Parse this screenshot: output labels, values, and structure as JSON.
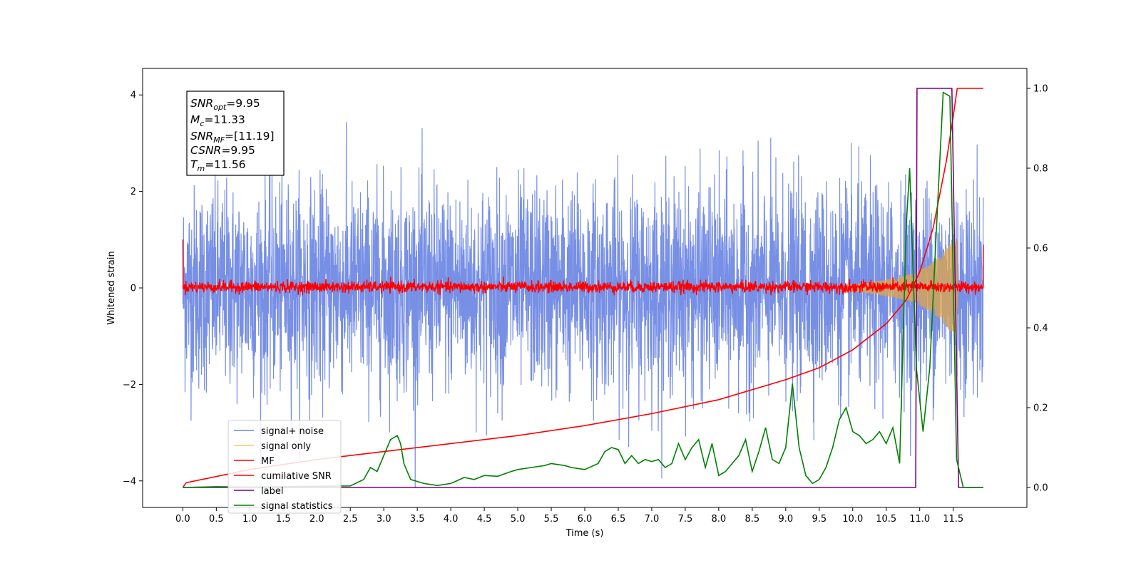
{
  "chart_data": {
    "type": "line",
    "xlabel": "Time (s)",
    "ylabel": "Whitened strain",
    "xlim": [
      -0.6,
      12.6
    ],
    "ylim": [
      -4.55,
      4.55
    ],
    "y2lim": [
      -0.05,
      1.05
    ],
    "grid": false,
    "xticks": [
      "0.0",
      "0.5",
      "1.0",
      "1.5",
      "2.0",
      "2.5",
      "3.0",
      "3.5",
      "4.0",
      "4.5",
      "5.0",
      "5.5",
      "6.0",
      "6.5",
      "7.0",
      "7.5",
      "8.0",
      "8.5",
      "9.0",
      "9.5",
      "10.0",
      "10.5",
      "11.0",
      "11.5"
    ],
    "yticks": [
      "4",
      "2",
      "0",
      "−2",
      "−4"
    ],
    "y2ticks": [
      "1.0",
      "0.8",
      "0.6",
      "0.4",
      "0.2",
      "0.0"
    ],
    "stats_box": {
      "lines": [
        {
          "sym": "SNR",
          "sub": "opt",
          "val": "=9.95"
        },
        {
          "sym": "M",
          "sub": "c",
          "val": "=11.33"
        },
        {
          "sym": "SNR",
          "sub": "MF",
          "val": "=[11.19]"
        },
        {
          "sym": "CSNR",
          "sub": "",
          "val": "=9.95"
        },
        {
          "sym": "T",
          "sub": "m",
          "val": "=11.56"
        }
      ]
    },
    "legend": {
      "placement": "lower-left",
      "entries": [
        {
          "label": "signal+ noise",
          "color": "#6b86e3"
        },
        {
          "label": "signal only",
          "color": "#f5c46e"
        },
        {
          "label": "MF",
          "color": "#ff0000"
        },
        {
          "label": "cumilative SNR",
          "color": "#ff0000"
        },
        {
          "label": "label",
          "color": "#800080"
        },
        {
          "label": "signal statistics",
          "color": "#008000"
        }
      ]
    },
    "series": [
      {
        "name": "signal+ noise",
        "axis": "left",
        "description": "white noise, amplitude approx ±3 (peaks to 4.1), 0 to 11.95 s"
      },
      {
        "name": "signal only",
        "axis": "left",
        "chirp_envelope": {
          "x": [
            9.8,
            10.2,
            10.6,
            10.9,
            11.1,
            11.3,
            11.45,
            11.56
          ],
          "amp": [
            0.05,
            0.1,
            0.2,
            0.3,
            0.45,
            0.65,
            0.9,
            1.0
          ]
        }
      },
      {
        "name": "MF",
        "axis": "left",
        "description": "noise around 0, amplitude approx ±0.2, starts at 1.0 and ends at 0.9"
      },
      {
        "name": "cumilative SNR",
        "axis": "right",
        "x": [
          0.0,
          0.05,
          1.0,
          2.0,
          3.0,
          4.0,
          5.0,
          6.0,
          7.0,
          8.0,
          9.0,
          9.5,
          10.0,
          10.5,
          10.8,
          11.0,
          11.2,
          11.4,
          11.5,
          11.56,
          11.95
        ],
        "y": [
          0.0,
          0.012,
          0.045,
          0.07,
          0.09,
          0.11,
          0.13,
          0.155,
          0.185,
          0.22,
          0.27,
          0.3,
          0.345,
          0.41,
          0.47,
          0.54,
          0.65,
          0.82,
          0.93,
          1.0,
          1.0
        ]
      },
      {
        "name": "label",
        "axis": "right",
        "x": [
          0.0,
          10.94,
          10.96,
          11.48,
          11.58,
          11.95
        ],
        "y": [
          0.0,
          0.0,
          1.0,
          1.0,
          0.0,
          0.0
        ]
      },
      {
        "name": "signal statistics",
        "axis": "right",
        "x": [
          0.0,
          0.5,
          1.0,
          1.5,
          2.0,
          2.5,
          2.7,
          2.8,
          2.9,
          3.0,
          3.1,
          3.2,
          3.25,
          3.3,
          3.4,
          3.6,
          3.8,
          4.0,
          4.2,
          4.35,
          4.5,
          4.7,
          4.9,
          5.0,
          5.2,
          5.4,
          5.5,
          5.7,
          5.8,
          6.0,
          6.2,
          6.3,
          6.4,
          6.5,
          6.6,
          6.7,
          6.8,
          6.9,
          7.0,
          7.1,
          7.2,
          7.3,
          7.4,
          7.5,
          7.6,
          7.7,
          7.8,
          7.9,
          8.0,
          8.1,
          8.2,
          8.3,
          8.4,
          8.5,
          8.6,
          8.7,
          8.8,
          8.9,
          9.0,
          9.1,
          9.15,
          9.2,
          9.3,
          9.4,
          9.5,
          9.6,
          9.7,
          9.8,
          9.9,
          10.0,
          10.1,
          10.2,
          10.3,
          10.4,
          10.5,
          10.6,
          10.7,
          10.8,
          10.85,
          10.95,
          11.05,
          11.15,
          11.25,
          11.35,
          11.45,
          11.55,
          11.65,
          11.95
        ],
        "y": [
          0.0,
          0.002,
          0.001,
          0.002,
          0.003,
          0.004,
          0.02,
          0.05,
          0.04,
          0.08,
          0.12,
          0.13,
          0.11,
          0.06,
          0.02,
          0.01,
          0.005,
          0.01,
          0.025,
          0.02,
          0.03,
          0.028,
          0.04,
          0.045,
          0.05,
          0.055,
          0.06,
          0.055,
          0.05,
          0.045,
          0.06,
          0.09,
          0.1,
          0.095,
          0.06,
          0.08,
          0.06,
          0.07,
          0.065,
          0.07,
          0.05,
          0.06,
          0.11,
          0.07,
          0.1,
          0.12,
          0.05,
          0.11,
          0.03,
          0.04,
          0.06,
          0.08,
          0.12,
          0.04,
          0.09,
          0.15,
          0.07,
          0.06,
          0.1,
          0.26,
          0.18,
          0.1,
          0.03,
          0.01,
          0.02,
          0.05,
          0.1,
          0.17,
          0.2,
          0.14,
          0.13,
          0.11,
          0.12,
          0.14,
          0.11,
          0.15,
          0.06,
          0.66,
          0.8,
          0.3,
          0.14,
          0.3,
          0.65,
          0.99,
          0.98,
          0.07,
          0.0,
          0.0
        ]
      }
    ]
  }
}
